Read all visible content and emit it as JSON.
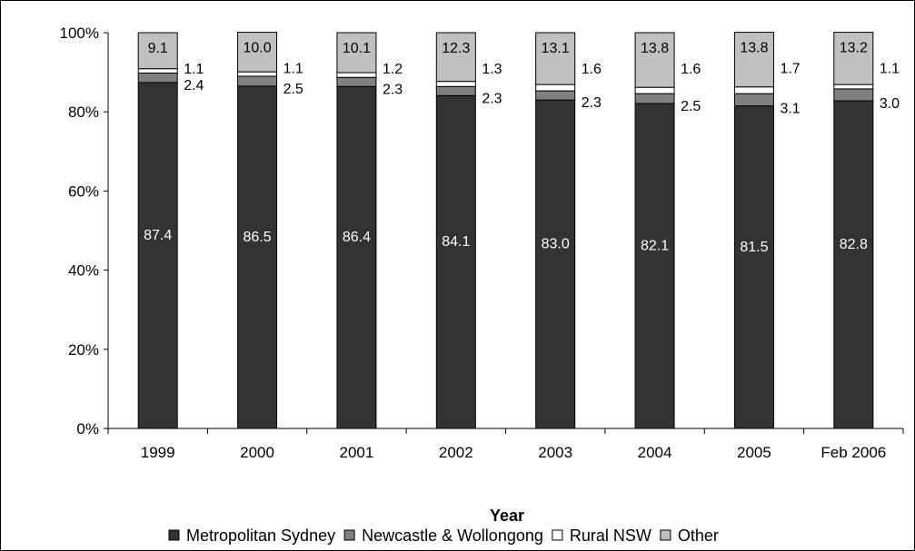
{
  "chart_data": {
    "type": "bar",
    "stacked": true,
    "percent": true,
    "categories": [
      "1999",
      "2000",
      "2001",
      "2002",
      "2003",
      "2004",
      "2005",
      "Feb 2006"
    ],
    "series": [
      {
        "name": "Metropolitan Sydney",
        "color": "#333333",
        "values": [
          87.4,
          86.5,
          86.4,
          84.1,
          83.0,
          82.1,
          81.5,
          82.8
        ],
        "labels": [
          "87.4",
          "86.5",
          "86.4",
          "84.1",
          "83.0",
          "82.1",
          "81.5",
          "82.8"
        ]
      },
      {
        "name": "Newcastle & Wollongong",
        "color": "#808080",
        "values": [
          2.4,
          2.5,
          2.3,
          2.3,
          2.3,
          2.5,
          3.1,
          3.0
        ],
        "labels": [
          "2.4",
          "2.5",
          "2.3",
          "2.3",
          "2.3",
          "2.5",
          "3.1",
          "3.0"
        ]
      },
      {
        "name": "Rural NSW",
        "color": "#ffffff",
        "values": [
          1.1,
          1.1,
          1.2,
          1.3,
          1.6,
          1.6,
          1.7,
          1.1
        ],
        "labels": [
          "1.1",
          "1.1",
          "1.2",
          "1.3",
          "1.6",
          "1.6",
          "1.7",
          "1.1"
        ]
      },
      {
        "name": "Other",
        "color": "#c0c0c0",
        "values": [
          9.1,
          10.0,
          10.1,
          12.3,
          13.1,
          13.8,
          13.8,
          13.2
        ],
        "labels": [
          "9.1",
          "10.0",
          "10.1",
          "12.3",
          "13.1",
          "13.8",
          "13.8",
          "13.2"
        ]
      }
    ],
    "xlabel": "Year",
    "ylabel": "",
    "ylim": [
      0,
      100
    ],
    "yticks": [
      "0%",
      "20%",
      "40%",
      "60%",
      "80%",
      "100%"
    ],
    "grid": false,
    "legend_position": "bottom"
  }
}
